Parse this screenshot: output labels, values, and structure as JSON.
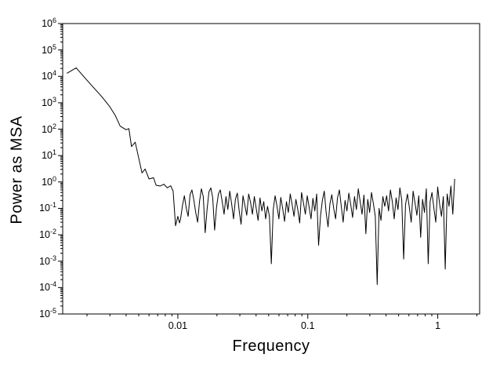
{
  "chart_data": {
    "type": "line",
    "title": "",
    "xlabel": "Frequency",
    "ylabel": "Power as MSA",
    "x_scale": "log",
    "y_scale": "log",
    "xlim": [
      0.0013,
      2.1
    ],
    "ylim": [
      1e-05,
      1000000
    ],
    "x_major_ticks": [
      0.01,
      0.1,
      1
    ],
    "x_tick_labels": [
      "0.01",
      "0.1",
      "1"
    ],
    "y_tick_exponents": [
      6,
      5,
      4,
      3,
      2,
      1,
      0,
      -1,
      -2,
      -3,
      -4,
      -5
    ],
    "grid": false,
    "legend": "none",
    "line_color": "#000000",
    "axis_color": "#000000",
    "background": "#ffffff",
    "series_name": "power-spectrum",
    "segments": [
      {
        "name": "low-frequency-rolloff",
        "type": "xy",
        "points": [
          [
            0.0014,
            13000
          ],
          [
            0.00165,
            21000
          ],
          [
            0.0019,
            9500
          ],
          [
            0.0022,
            4200
          ],
          [
            0.0026,
            1700
          ],
          [
            0.003,
            700
          ],
          [
            0.0033,
            330
          ],
          [
            0.0036,
            130
          ],
          [
            0.004,
            95
          ],
          [
            0.0042,
            105
          ],
          [
            0.0044,
            22
          ],
          [
            0.0047,
            32
          ],
          [
            0.005,
            8
          ],
          [
            0.0053,
            2.2
          ],
          [
            0.0056,
            3.1
          ],
          [
            0.006,
            1.3
          ],
          [
            0.0065,
            1.45
          ],
          [
            0.0068,
            0.75
          ],
          [
            0.0073,
            0.7
          ],
          [
            0.0078,
            0.82
          ],
          [
            0.0083,
            0.6
          ],
          [
            0.0088,
            0.72
          ],
          [
            0.0092,
            0.45
          ],
          [
            0.0096,
            0.022
          ],
          [
            0.01,
            0.05
          ],
          [
            0.0103,
            0.028
          ]
        ]
      },
      {
        "name": "noise-floor",
        "type": "log-spaced",
        "f_start": 0.0105,
        "f_end": 1.35,
        "values": [
          0.04,
          0.13,
          0.3,
          0.1,
          0.05,
          0.33,
          0.5,
          0.21,
          0.07,
          0.03,
          0.18,
          0.55,
          0.28,
          0.012,
          0.09,
          0.42,
          0.6,
          0.25,
          0.015,
          0.11,
          0.35,
          0.5,
          0.18,
          0.06,
          0.28,
          0.09,
          0.45,
          0.15,
          0.04,
          0.22,
          0.38,
          0.08,
          0.025,
          0.3,
          0.13,
          0.055,
          0.35,
          0.17,
          0.06,
          0.28,
          0.1,
          0.035,
          0.25,
          0.08,
          0.18,
          0.04,
          0.12,
          0.05,
          0.0008,
          0.09,
          0.3,
          0.12,
          0.04,
          0.26,
          0.1,
          0.032,
          0.18,
          0.07,
          0.35,
          0.14,
          0.05,
          0.22,
          0.09,
          0.028,
          0.4,
          0.16,
          0.06,
          0.3,
          0.11,
          0.04,
          0.24,
          0.08,
          0.35,
          0.004,
          0.05,
          0.2,
          0.45,
          0.07,
          0.02,
          0.15,
          0.33,
          0.1,
          0.04,
          0.25,
          0.5,
          0.12,
          0.03,
          0.2,
          0.08,
          0.38,
          0.14,
          0.045,
          0.28,
          0.09,
          0.55,
          0.18,
          0.06,
          0.32,
          0.011,
          0.22,
          0.07,
          0.4,
          0.15,
          0.05,
          0.00013,
          0.1,
          0.035,
          0.28,
          0.12,
          0.3,
          0.08,
          0.5,
          0.18,
          0.04,
          0.25,
          0.09,
          0.6,
          0.2,
          0.0012,
          0.14,
          0.35,
          0.11,
          0.03,
          0.45,
          0.16,
          0.055,
          0.3,
          0.008,
          0.22,
          0.07,
          0.55,
          0.0008,
          0.18,
          0.4,
          0.1,
          0.03,
          0.65,
          0.15,
          0.05,
          0.28,
          0.0005,
          0.35,
          0.12,
          0.7,
          0.06,
          1.3
        ]
      }
    ]
  }
}
